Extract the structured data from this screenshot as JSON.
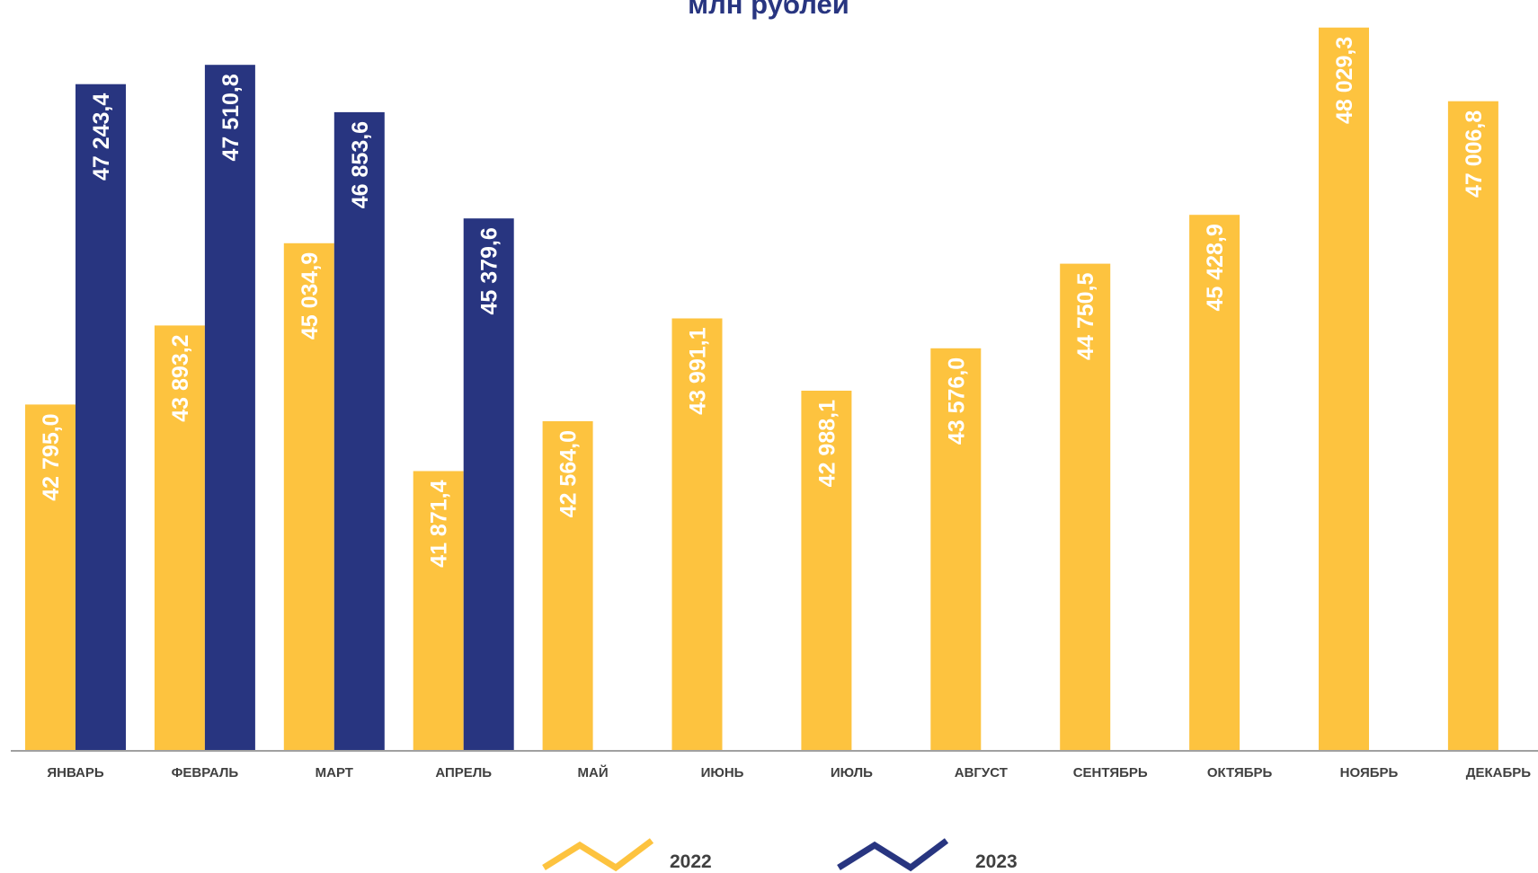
{
  "chart_data": {
    "type": "bar",
    "title": "млн рублей",
    "categories": [
      "ЯНВАРЬ",
      "ФЕВРАЛЬ",
      "МАРТ",
      "АПРЕЛЬ",
      "МАЙ",
      "ИЮНЬ",
      "ИЮЛЬ",
      "АВГУСТ",
      "СЕНТЯБРЬ",
      "ОКТЯБРЬ",
      "НОЯБРЬ",
      "ДЕКАБРЬ"
    ],
    "series": [
      {
        "name": "2022",
        "color": "#FDC33F",
        "values": [
          42795.0,
          43893.2,
          45034.9,
          41871.4,
          42564.0,
          43991.1,
          42988.1,
          43576.0,
          44750.5,
          45428.9,
          48029.3,
          47006.8
        ],
        "labels": [
          "42 795,0",
          "43 893,2",
          "45 034,9",
          "41 871,4",
          "42 564,0",
          "43 991,1",
          "42 988,1",
          "43 576,0",
          "44 750,5",
          "45 428,9",
          "48 029,3",
          "47 006,8"
        ]
      },
      {
        "name": "2023",
        "color": "#283580",
        "values": [
          47243.4,
          47510.8,
          46853.6,
          45379.6,
          null,
          null,
          null,
          null,
          null,
          null,
          null,
          null
        ],
        "labels": [
          "47 243,4",
          "47 510,8",
          "46 853,6",
          "45 379,6",
          null,
          null,
          null,
          null,
          null,
          null,
          null,
          null
        ]
      }
    ],
    "ylim": [
      38000,
      48000
    ],
    "grid": false,
    "legend_position": "bottom",
    "title_color": "#283580",
    "axis_color": "#808080"
  }
}
